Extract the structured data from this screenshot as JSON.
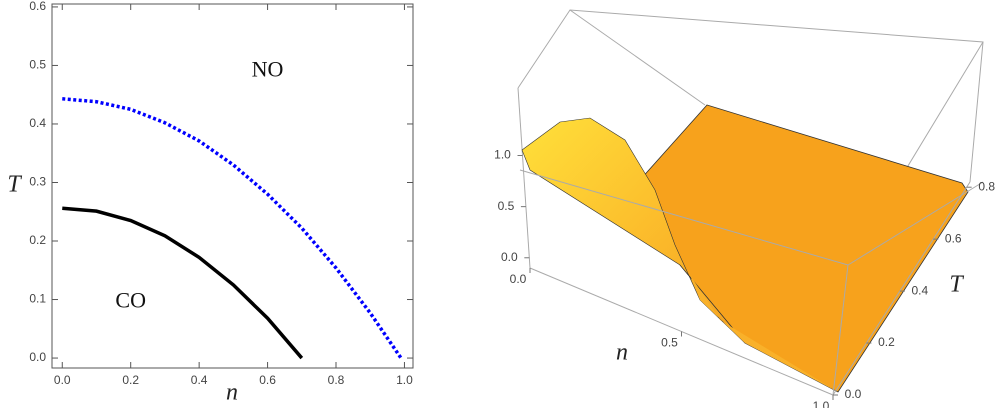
{
  "chart_data": [
    {
      "type": "line",
      "xlabel": "n",
      "ylabel": "T",
      "xlim": [
        -0.03,
        1.025
      ],
      "ylim": [
        -0.017,
        0.605
      ],
      "xticks": [
        {
          "value": 0,
          "label": "0.0"
        },
        {
          "value": 0.2,
          "label": "0.2"
        },
        {
          "value": 0.4,
          "label": "0.4"
        },
        {
          "value": 0.6,
          "label": "0.6"
        },
        {
          "value": 0.8,
          "label": "0.8"
        },
        {
          "value": 1,
          "label": "1.0"
        }
      ],
      "yticks": [
        {
          "value": 0,
          "label": "0.0"
        },
        {
          "value": 0.1,
          "label": "0.1"
        },
        {
          "value": 0.2,
          "label": "0.2"
        },
        {
          "value": 0.3,
          "label": "0.3"
        },
        {
          "value": 0.4,
          "label": "0.4"
        },
        {
          "value": 0.5,
          "label": "0.5"
        },
        {
          "value": 0.6,
          "label": "0.6"
        }
      ],
      "series": [
        {
          "color": "#0000ff",
          "style": "dotted",
          "x": [
            0,
            0.1,
            0.2,
            0.3,
            0.4,
            0.5,
            0.6,
            0.7,
            0.8,
            0.9,
            0.99
          ],
          "values": [
            0.443,
            0.438,
            0.425,
            0.402,
            0.371,
            0.33,
            0.28,
            0.222,
            0.154,
            0.077,
            0
          ]
        },
        {
          "color": "#000000",
          "style": "solid",
          "x": [
            0,
            0.1,
            0.2,
            0.3,
            0.4,
            0.5,
            0.6,
            0.7
          ],
          "values": [
            0.256,
            0.251,
            0.235,
            0.209,
            0.172,
            0.125,
            0.068,
            0
          ]
        }
      ],
      "annotations": [
        {
          "text": "NO"
        },
        {
          "text": "CO"
        }
      ]
    },
    {
      "type": "surface3d",
      "xlabel": "n",
      "ylabel": "T",
      "xlim": [
        0,
        1
      ],
      "ylim": [
        0,
        0.82
      ],
      "zlim": [
        -0.1,
        1.66
      ],
      "xticks": [
        {
          "value": 0,
          "label": "0.0"
        },
        {
          "value": 0.5,
          "label": "0.5"
        },
        {
          "value": 1,
          "label": "1.0"
        }
      ],
      "yticks": [
        {
          "value": 0,
          "label": "0.0"
        },
        {
          "value": 0.2,
          "label": "0.2"
        },
        {
          "value": 0.4,
          "label": "0.4"
        },
        {
          "value": 0.6,
          "label": "0.6"
        },
        {
          "value": 0.8,
          "label": "0.8"
        }
      ],
      "zticks": [
        {
          "value": 0,
          "label": "0.0"
        },
        {
          "value": 0.5,
          "label": "0.5"
        },
        {
          "value": 1,
          "label": "1.0"
        }
      ]
    }
  ]
}
